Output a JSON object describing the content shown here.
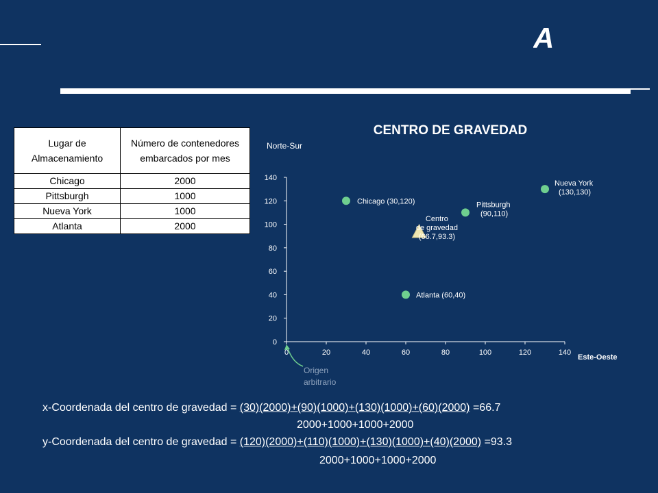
{
  "chart_data": {
    "type": "scatter",
    "title": "CENTRO DE GRAVEDAD",
    "xlabel": "Este-Oeste",
    "ylabel": "Norte-Sur",
    "xlim": [
      0,
      140
    ],
    "ylim": [
      0,
      140
    ],
    "xticks": [
      0,
      20,
      40,
      60,
      80,
      100,
      120,
      140
    ],
    "yticks": [
      0,
      20,
      40,
      60,
      80,
      100,
      120,
      140
    ],
    "grid": false,
    "points": [
      {
        "label": "Chicago (30,120)",
        "x": 30,
        "y": 120,
        "marker": "circle"
      },
      {
        "label": "Pittsburgh (90,110)",
        "x": 90,
        "y": 110,
        "marker": "circle"
      },
      {
        "label": "Nueva York (130,130)",
        "x": 130,
        "y": 130,
        "marker": "circle"
      },
      {
        "label": "Atlanta (60,40)",
        "x": 60,
        "y": 40,
        "marker": "circle"
      },
      {
        "label": "Centro de gravedad (66.7,93.3)",
        "x": 66.7,
        "y": 93.3,
        "marker": "triangle"
      }
    ],
    "annotation": "Origen arbitrario",
    "colors": {
      "point": "#6fcf8f",
      "center": "#efe6b0",
      "axis": "#ffffff"
    }
  },
  "table": {
    "headers": [
      "Lugar de Almacenamiento",
      "Número de contenedores embarcados por mes"
    ],
    "rows": [
      [
        "Chicago",
        "2000"
      ],
      [
        "Pittsburgh",
        "1000"
      ],
      [
        "Nueva York",
        "1000"
      ],
      [
        "Atlanta",
        "2000"
      ]
    ]
  },
  "formulas": {
    "x_prefix": "x-Coordenada del centro de gravedad = ",
    "x_numerator": " (30)(2000)+(90)(1000)+(130)(1000)+(60)(2000)",
    "x_result": "=66.7",
    "x_denominator": "2000+1000+1000+2000",
    "y_prefix": "y-Coordenada del centro de gravedad = ",
    "y_numerator": " (120)(2000)+(110)(1000)+(130)(1000)+(40)(2000)",
    "y_result": "=93.3",
    "y_denominator": "2000+1000+1000+2000"
  }
}
